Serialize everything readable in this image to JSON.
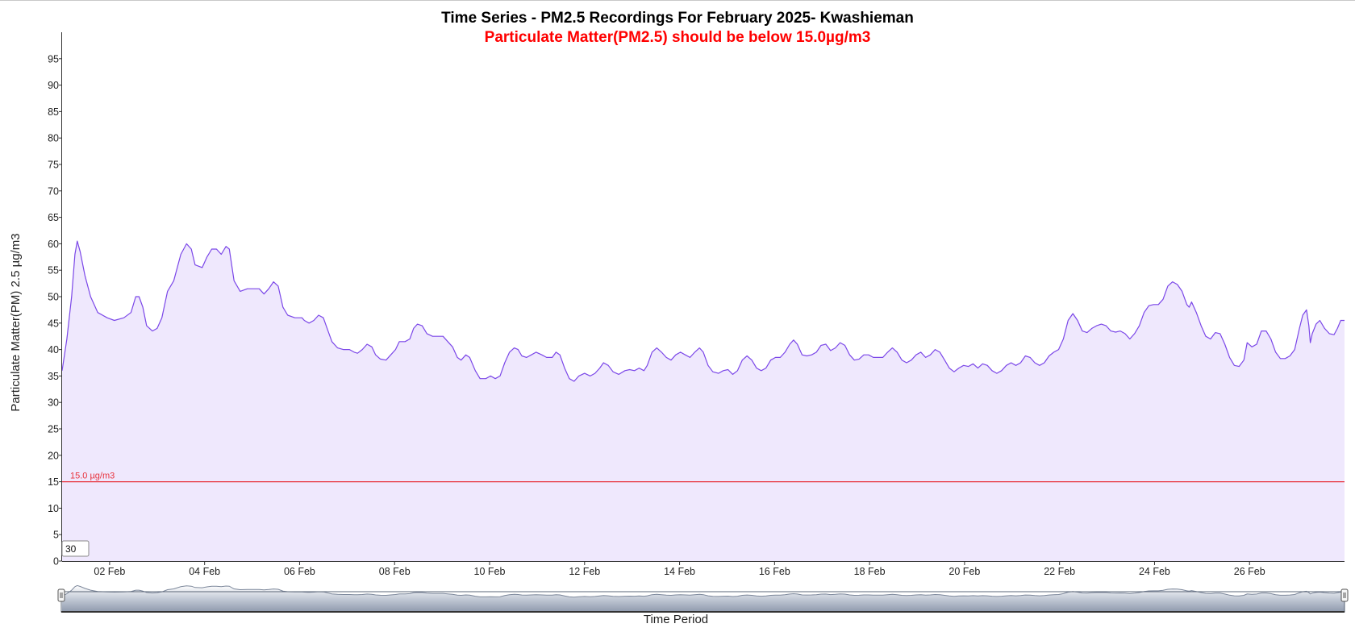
{
  "chart_data": {
    "type": "area",
    "title": "Time Series - PM2.5 Recordings For February 2025- Kwashieman",
    "subtitle": "Particulate Matter(PM2.5) should be below 15.0µg/m3",
    "ylabel": "Particulate Matter(PM) 2.5 µg/m3",
    "xlabel": "Time Period",
    "ylim": [
      0,
      100
    ],
    "yticks": [
      0,
      5,
      10,
      15,
      20,
      25,
      30,
      35,
      40,
      45,
      50,
      55,
      60,
      65,
      70,
      75,
      80,
      85,
      90,
      95
    ],
    "xlim": [
      1.0,
      28.0
    ],
    "xticks": [
      {
        "day": 2,
        "label": "02 Feb"
      },
      {
        "day": 4,
        "label": "04 Feb"
      },
      {
        "day": 6,
        "label": "06 Feb"
      },
      {
        "day": 8,
        "label": "08 Feb"
      },
      {
        "day": 10,
        "label": "10 Feb"
      },
      {
        "day": 12,
        "label": "12 Feb"
      },
      {
        "day": 14,
        "label": "14 Feb"
      },
      {
        "day": 16,
        "label": "16 Feb"
      },
      {
        "day": 18,
        "label": "18 Feb"
      },
      {
        "day": 20,
        "label": "20 Feb"
      },
      {
        "day": 22,
        "label": "22 Feb"
      },
      {
        "day": 24,
        "label": "24 Feb"
      },
      {
        "day": 26,
        "label": "26 Feb"
      }
    ],
    "threshold": {
      "value": 15.0,
      "label": "15.0 µg/m3",
      "color": "#e8323c"
    },
    "series": [
      {
        "line_color": "#7b47e8",
        "fill_color": "#efe8fd",
        "points": [
          [
            1.0,
            36
          ],
          [
            1.1,
            42
          ],
          [
            1.2,
            50
          ],
          [
            1.27,
            58
          ],
          [
            1.32,
            60.5
          ],
          [
            1.38,
            58.5
          ],
          [
            1.48,
            54
          ],
          [
            1.6,
            50
          ],
          [
            1.75,
            47
          ],
          [
            1.95,
            46
          ],
          [
            2.1,
            45.5
          ],
          [
            2.3,
            46
          ],
          [
            2.45,
            47
          ],
          [
            2.55,
            50
          ],
          [
            2.62,
            50
          ],
          [
            2.7,
            48
          ],
          [
            2.78,
            44.5
          ],
          [
            2.9,
            43.5
          ],
          [
            3.0,
            44
          ],
          [
            3.1,
            46
          ],
          [
            3.22,
            51
          ],
          [
            3.35,
            53
          ],
          [
            3.5,
            58
          ],
          [
            3.62,
            60
          ],
          [
            3.72,
            59
          ],
          [
            3.8,
            56
          ],
          [
            3.95,
            55.5
          ],
          [
            4.05,
            57.5
          ],
          [
            4.15,
            59
          ],
          [
            4.25,
            59
          ],
          [
            4.35,
            58
          ],
          [
            4.45,
            59.5
          ],
          [
            4.52,
            59
          ],
          [
            4.62,
            53
          ],
          [
            4.75,
            51
          ],
          [
            4.9,
            51.5
          ],
          [
            5.05,
            51.5
          ],
          [
            5.15,
            51.5
          ],
          [
            5.25,
            50.5
          ],
          [
            5.35,
            51.5
          ],
          [
            5.45,
            52.8
          ],
          [
            5.55,
            52
          ],
          [
            5.65,
            48
          ],
          [
            5.75,
            46.5
          ],
          [
            5.9,
            46
          ],
          [
            6.05,
            46
          ],
          [
            6.1,
            45.5
          ],
          [
            6.2,
            45
          ],
          [
            6.3,
            45.5
          ],
          [
            6.4,
            46.5
          ],
          [
            6.5,
            46
          ],
          [
            6.58,
            44
          ],
          [
            6.68,
            41.5
          ],
          [
            6.8,
            40.3
          ],
          [
            6.92,
            40
          ],
          [
            7.05,
            40
          ],
          [
            7.15,
            39.5
          ],
          [
            7.22,
            39.3
          ],
          [
            7.32,
            40
          ],
          [
            7.42,
            41
          ],
          [
            7.52,
            40.5
          ],
          [
            7.6,
            39
          ],
          [
            7.7,
            38.2
          ],
          [
            7.82,
            38
          ],
          [
            7.92,
            39
          ],
          [
            8.02,
            40
          ],
          [
            8.1,
            41.5
          ],
          [
            8.22,
            41.5
          ],
          [
            8.32,
            42
          ],
          [
            8.4,
            44
          ],
          [
            8.48,
            44.8
          ],
          [
            8.58,
            44.5
          ],
          [
            8.68,
            43
          ],
          [
            8.8,
            42.5
          ],
          [
            8.92,
            42.5
          ],
          [
            9.02,
            42.5
          ],
          [
            9.12,
            41.5
          ],
          [
            9.22,
            40.5
          ],
          [
            9.32,
            38.5
          ],
          [
            9.4,
            38
          ],
          [
            9.5,
            39
          ],
          [
            9.58,
            38.5
          ],
          [
            9.7,
            36
          ],
          [
            9.8,
            34.5
          ],
          [
            9.92,
            34.5
          ],
          [
            10.02,
            35
          ],
          [
            10.12,
            34.5
          ],
          [
            10.22,
            35
          ],
          [
            10.32,
            37.5
          ],
          [
            10.42,
            39.5
          ],
          [
            10.52,
            40.3
          ],
          [
            10.6,
            40
          ],
          [
            10.68,
            38.8
          ],
          [
            10.78,
            38.5
          ],
          [
            10.88,
            39
          ],
          [
            10.98,
            39.5
          ],
          [
            11.1,
            39
          ],
          [
            11.2,
            38.5
          ],
          [
            11.32,
            38.5
          ],
          [
            11.4,
            39.5
          ],
          [
            11.48,
            39
          ],
          [
            11.58,
            36.5
          ],
          [
            11.68,
            34.5
          ],
          [
            11.78,
            34
          ],
          [
            11.88,
            35
          ],
          [
            12.0,
            35.5
          ],
          [
            12.12,
            35
          ],
          [
            12.22,
            35.5
          ],
          [
            12.32,
            36.5
          ],
          [
            12.4,
            37.5
          ],
          [
            12.5,
            37
          ],
          [
            12.6,
            35.8
          ],
          [
            12.72,
            35.3
          ],
          [
            12.85,
            36
          ],
          [
            12.95,
            36.2
          ],
          [
            13.05,
            36
          ],
          [
            13.15,
            36.5
          ],
          [
            13.25,
            36
          ],
          [
            13.32,
            37
          ],
          [
            13.42,
            39.5
          ],
          [
            13.52,
            40.3
          ],
          [
            13.62,
            39.5
          ],
          [
            13.72,
            38.5
          ],
          [
            13.82,
            38
          ],
          [
            13.92,
            39
          ],
          [
            14.02,
            39.5
          ],
          [
            14.12,
            39
          ],
          [
            14.22,
            38.5
          ],
          [
            14.32,
            39.5
          ],
          [
            14.42,
            40.3
          ],
          [
            14.5,
            39.5
          ],
          [
            14.6,
            37
          ],
          [
            14.7,
            35.8
          ],
          [
            14.82,
            35.5
          ],
          [
            14.92,
            36
          ],
          [
            15.02,
            36.2
          ],
          [
            15.12,
            35.3
          ],
          [
            15.22,
            36
          ],
          [
            15.32,
            38
          ],
          [
            15.42,
            38.8
          ],
          [
            15.52,
            38
          ],
          [
            15.62,
            36.5
          ],
          [
            15.72,
            36
          ],
          [
            15.82,
            36.5
          ],
          [
            15.92,
            38
          ],
          [
            16.02,
            38.5
          ],
          [
            16.12,
            38.5
          ],
          [
            16.22,
            39.5
          ],
          [
            16.32,
            41
          ],
          [
            16.4,
            41.8
          ],
          [
            16.48,
            41
          ],
          [
            16.58,
            39
          ],
          [
            16.68,
            38.8
          ],
          [
            16.78,
            39
          ],
          [
            16.88,
            39.5
          ],
          [
            16.98,
            40.8
          ],
          [
            17.08,
            41
          ],
          [
            17.18,
            39.8
          ],
          [
            17.28,
            40.3
          ],
          [
            17.38,
            41.3
          ],
          [
            17.48,
            40.8
          ],
          [
            17.58,
            39
          ],
          [
            17.68,
            38
          ],
          [
            17.78,
            38.2
          ],
          [
            17.88,
            39
          ],
          [
            17.98,
            39
          ],
          [
            18.08,
            38.5
          ],
          [
            18.18,
            38.5
          ],
          [
            18.28,
            38.5
          ],
          [
            18.38,
            39.5
          ],
          [
            18.48,
            40.3
          ],
          [
            18.58,
            39.5
          ],
          [
            18.68,
            38
          ],
          [
            18.78,
            37.5
          ],
          [
            18.88,
            38
          ],
          [
            18.98,
            39
          ],
          [
            19.08,
            39.5
          ],
          [
            19.18,
            38.5
          ],
          [
            19.28,
            39
          ],
          [
            19.38,
            40
          ],
          [
            19.48,
            39.5
          ],
          [
            19.58,
            38
          ],
          [
            19.68,
            36.5
          ],
          [
            19.78,
            35.8
          ],
          [
            19.88,
            36.5
          ],
          [
            19.98,
            37
          ],
          [
            20.08,
            36.8
          ],
          [
            20.18,
            37.3
          ],
          [
            20.28,
            36.5
          ],
          [
            20.38,
            37.3
          ],
          [
            20.48,
            37
          ],
          [
            20.58,
            36
          ],
          [
            20.68,
            35.5
          ],
          [
            20.78,
            36
          ],
          [
            20.88,
            37
          ],
          [
            20.98,
            37.5
          ],
          [
            21.08,
            37
          ],
          [
            21.18,
            37.5
          ],
          [
            21.28,
            38.8
          ],
          [
            21.38,
            38.5
          ],
          [
            21.48,
            37.5
          ],
          [
            21.58,
            37
          ],
          [
            21.68,
            37.5
          ],
          [
            21.78,
            38.8
          ],
          [
            21.88,
            39.5
          ],
          [
            21.98,
            40
          ],
          [
            22.08,
            42
          ],
          [
            22.18,
            45.5
          ],
          [
            22.28,
            46.8
          ],
          [
            22.38,
            45.5
          ],
          [
            22.48,
            43.5
          ],
          [
            22.58,
            43.2
          ],
          [
            22.68,
            44
          ],
          [
            22.78,
            44.5
          ],
          [
            22.88,
            44.8
          ],
          [
            22.98,
            44.5
          ],
          [
            23.08,
            43.5
          ],
          [
            23.18,
            43.3
          ],
          [
            23.28,
            43.5
          ],
          [
            23.38,
            43
          ],
          [
            23.48,
            42
          ],
          [
            23.58,
            43
          ],
          [
            23.68,
            44.5
          ],
          [
            23.78,
            47
          ],
          [
            23.88,
            48.3
          ],
          [
            23.98,
            48.5
          ],
          [
            24.08,
            48.5
          ],
          [
            24.18,
            49.5
          ],
          [
            24.28,
            52
          ],
          [
            24.38,
            52.8
          ],
          [
            24.48,
            52.3
          ],
          [
            24.58,
            51
          ],
          [
            24.68,
            48.5
          ],
          [
            24.73,
            48
          ],
          [
            24.78,
            49
          ],
          [
            24.88,
            47
          ],
          [
            24.98,
            44.5
          ],
          [
            25.08,
            42.5
          ],
          [
            25.18,
            42
          ],
          [
            25.28,
            43.2
          ],
          [
            25.38,
            43
          ],
          [
            25.48,
            41
          ],
          [
            25.58,
            38.5
          ],
          [
            25.68,
            37
          ],
          [
            25.78,
            36.8
          ],
          [
            25.88,
            38
          ],
          [
            25.95,
            41.3
          ],
          [
            26.05,
            40.5
          ],
          [
            26.15,
            41
          ],
          [
            26.25,
            43.5
          ],
          [
            26.35,
            43.5
          ],
          [
            26.45,
            42
          ],
          [
            26.55,
            39.5
          ],
          [
            26.65,
            38.3
          ],
          [
            26.75,
            38.3
          ],
          [
            26.85,
            38.8
          ],
          [
            26.95,
            40
          ],
          [
            27.05,
            44
          ],
          [
            27.12,
            46.5
          ],
          [
            27.2,
            47.5
          ],
          [
            27.25,
            44.5
          ],
          [
            27.28,
            41.3
          ],
          [
            27.32,
            43
          ],
          [
            27.4,
            44.8
          ],
          [
            27.48,
            45.5
          ],
          [
            27.58,
            44
          ],
          [
            27.68,
            43
          ],
          [
            27.78,
            42.8
          ],
          [
            27.85,
            44
          ],
          [
            27.92,
            45.5
          ],
          [
            28.0,
            45.5
          ]
        ]
      }
    ]
  },
  "controls": {
    "rolling_period": "30"
  }
}
